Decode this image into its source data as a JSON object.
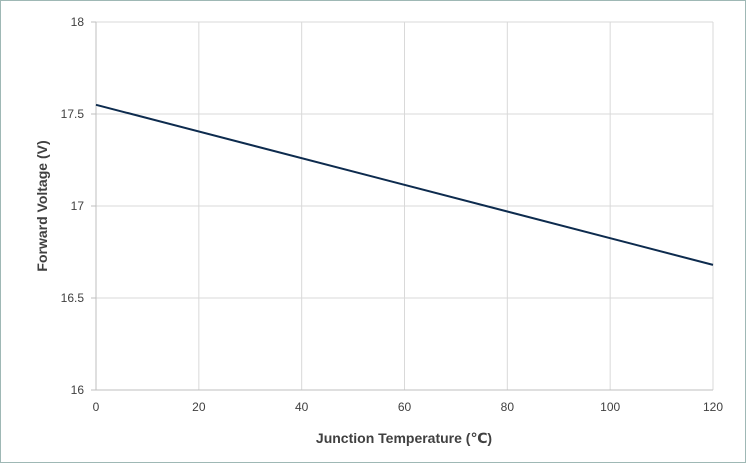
{
  "chart_data": {
    "type": "line",
    "title": "",
    "xlabel": "Junction Temperature (℃)",
    "ylabel": "Forward Voltage (V)",
    "xlim": [
      0,
      120
    ],
    "ylim": [
      16,
      18
    ],
    "x_ticks": [
      "0",
      "20",
      "40",
      "60",
      "80",
      "100",
      "120"
    ],
    "y_ticks": [
      "16",
      "16.5",
      "17",
      "17.5",
      "18"
    ],
    "grid": true,
    "legend": "none",
    "series": [
      {
        "x": [
          0,
          120
        ],
        "y": [
          17.55,
          16.68
        ]
      }
    ],
    "colors": {
      "line": "#0d2b4e",
      "grid": "#d9d9d9",
      "axis": "#bfbfbf",
      "frame": "#9fb8b5"
    }
  }
}
